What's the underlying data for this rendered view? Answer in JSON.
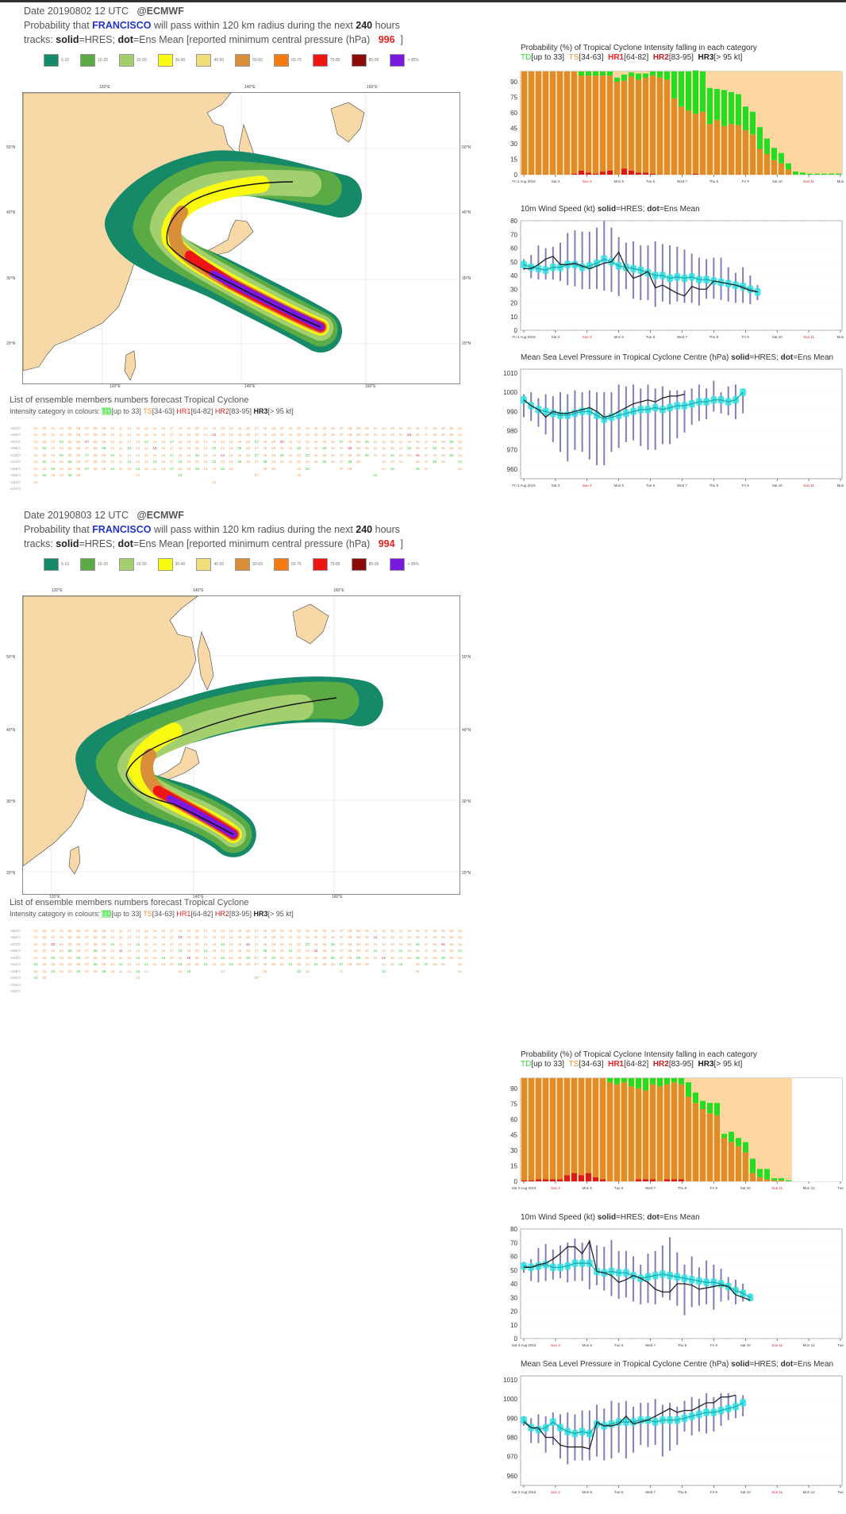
{
  "panels": [
    {
      "date_line": "Date 20190802 12 UTC",
      "org": "@ECMWF",
      "prob_prefix": "Probability that",
      "storm_name": "FRANCISCO",
      "prob_suffix": "will pass within 120 km radius during the next",
      "hours": "240",
      "hours_unit": "hours",
      "tracks_prefix": "tracks:",
      "solid": "solid",
      "solid_desc": "=HRES;",
      "dot": "dot",
      "dot_desc": "=Ens Mean [reported minimum central pressure (hPa)",
      "pressure": "996",
      "close_bracket": "]",
      "map_lon_top": [
        "120°E",
        "140°E",
        "160°E"
      ],
      "map_lat": [
        "50°N",
        "40°N",
        "30°N",
        "20°N"
      ],
      "map_lon_bottom": [
        "120°E",
        "140°E",
        "160°E"
      ],
      "ens_title": "List of ensemble members numbers forecast Tropical Cyclone",
      "ens_cat_prefix": "Intensity category in colours:",
      "ens_rows": [
        "+024 h",
        "+048 h",
        "+072 h",
        "+096 h",
        "+120 h",
        "+144 h",
        "+168 h",
        "+192 h",
        "+216 h",
        "+240 h"
      ],
      "ens_counts": [
        51,
        51,
        51,
        51,
        51,
        36,
        22,
        6,
        1,
        0
      ],
      "prob_chart": {
        "title": "Probability (%) of Tropical Cyclone Intensity falling in each category",
        "x_labels": [
          "Fri 2 Aug 2019",
          "Sat 3",
          "Sun 4",
          "Mon 5",
          "Tue 6",
          "Wed 7",
          "Thu 8",
          "Fri 9",
          "Sat 10",
          "Sun 11",
          "Mon"
        ],
        "td": [
          0,
          0,
          0,
          0,
          0,
          0,
          0,
          0,
          4,
          4,
          4,
          4,
          4,
          4,
          6,
          4,
          6,
          4,
          4,
          6,
          8,
          26,
          34,
          38,
          42,
          39,
          35,
          30,
          35,
          31,
          30,
          23,
          22,
          21,
          15,
          12,
          10,
          6,
          3,
          2,
          1,
          1,
          1,
          1,
          1
        ],
        "ts": [
          100,
          100,
          100,
          100,
          100,
          100,
          100,
          99,
          92,
          94,
          95,
          93,
          92,
          90,
          85,
          91,
          90,
          92,
          95,
          94,
          92,
          74,
          66,
          62,
          58,
          61,
          49,
          53,
          47,
          49,
          48,
          43,
          39,
          25,
          20,
          14,
          11,
          5,
          0,
          0,
          0,
          0,
          0,
          0,
          0
        ],
        "hr1": [
          0,
          0,
          0,
          0,
          0,
          0,
          0,
          1,
          4,
          2,
          1,
          3,
          4,
          0,
          6,
          4,
          2,
          2,
          1,
          0,
          0,
          0,
          0,
          0,
          1,
          0,
          0,
          0,
          0,
          0,
          0,
          0,
          0,
          0,
          0,
          0,
          0,
          0,
          0,
          0,
          0,
          0,
          0,
          0,
          0
        ]
      },
      "wind_chart": {
        "title": "10m Wind Speed (kt)",
        "y_ticks": [
          0,
          10,
          20,
          30,
          40,
          50,
          60,
          70,
          80
        ],
        "x_labels": [
          "Fri 2 Aug 2019",
          "Sat 3",
          "Sun 4",
          "Mon 5",
          "Tue 6",
          "Wed 7",
          "Thu 8",
          "Fri 9",
          "Sat 10",
          "Sun 11",
          "Mon"
        ],
        "hres": [
          45,
          45,
          48,
          52,
          54,
          48,
          48,
          49,
          47,
          45,
          47,
          49,
          50,
          57,
          45,
          38,
          40,
          43,
          31,
          33,
          30,
          27,
          25,
          32,
          30,
          30,
          36,
          35,
          34,
          33,
          31,
          29,
          28
        ],
        "ens_mean": [
          48,
          46,
          45,
          44,
          46,
          46,
          48,
          48,
          46,
          47,
          49,
          52,
          50,
          47,
          46,
          45,
          44,
          42,
          40,
          40,
          38,
          39,
          38,
          39,
          37,
          37,
          36,
          35,
          34,
          33,
          32,
          30,
          28
        ],
        "ens_min": [
          44,
          38,
          37,
          37,
          37,
          36,
          33,
          32,
          30,
          30,
          30,
          29,
          28,
          25,
          30,
          23,
          22,
          22,
          17,
          21,
          19,
          21,
          20,
          20,
          18,
          23,
          23,
          22,
          21,
          20,
          20,
          19,
          22
        ],
        "ens_max": [
          52,
          55,
          62,
          60,
          61,
          64,
          71,
          73,
          72,
          72,
          75,
          80,
          75,
          68,
          64,
          65,
          62,
          62,
          65,
          63,
          62,
          61,
          59,
          56,
          53,
          52,
          53,
          53,
          46,
          42,
          46,
          40,
          33
        ]
      },
      "mslp_chart": {
        "title": "Mean Sea Level Pressure in Tropical Cyclone Centre (hPa)",
        "y_ticks": [
          960,
          970,
          980,
          990,
          1000,
          1010
        ],
        "x_labels": [
          "Fri 2 Aug 2019",
          "Sat 3",
          "Sun 4",
          "Mon 5",
          "Tue 6",
          "Wed 7",
          "Thu 8",
          "Fri 9",
          "Sat 10",
          "Sun 11",
          "Mon"
        ],
        "hres": [
          996,
          993,
          991,
          987,
          990,
          989,
          989,
          990,
          991,
          992,
          990,
          987,
          988,
          990,
          992,
          994,
          995,
          996,
          995,
          997,
          998,
          998,
          999
        ],
        "ens_mean": [
          996,
          993,
          991,
          990,
          989,
          988,
          988,
          989,
          990,
          990,
          988,
          986,
          987,
          988,
          989,
          990,
          991,
          991,
          992,
          991,
          992,
          993,
          993,
          994,
          995,
          995,
          996,
          996,
          995,
          996,
          1000
        ],
        "ens_min": [
          987,
          985,
          982,
          978,
          974,
          969,
          964,
          970,
          969,
          965,
          962,
          962,
          969,
          971,
          974,
          975,
          972,
          970,
          970,
          973,
          973,
          976,
          979,
          983,
          985,
          986,
          990,
          989,
          988,
          986,
          989
        ],
        "ens_max": [
          999,
          1000,
          997,
          999,
          998,
          1000,
          999,
          1001,
          1000,
          1001,
          1000,
          1000,
          1000,
          1004,
          1003,
          1004,
          1002,
          1004,
          1002,
          1003,
          1001,
          1001,
          1001,
          1002,
          1004,
          1002,
          1006,
          1000,
          1003,
          1004,
          1000
        ]
      }
    },
    {
      "date_line": "Date 20190803 12 UTC",
      "org": "@ECMWF",
      "prob_prefix": "Probability that",
      "storm_name": "FRANCISCO",
      "prob_suffix": "will pass within 120 km radius during the next",
      "hours": "240",
      "hours_unit": "hours",
      "tracks_prefix": "tracks:",
      "solid": "solid",
      "solid_desc": "=HRES;",
      "dot": "dot",
      "dot_desc": "=Ens Mean [reported minimum central pressure (hPa)",
      "pressure": "994",
      "close_bracket": "]",
      "map_lon_top": [
        "120°E",
        "140°E",
        "160°E"
      ],
      "map_lat": [
        "50°N",
        "40°N",
        "30°N",
        "20°N"
      ],
      "map_lon_bottom": [
        "120°E",
        "140°E",
        "160°E"
      ],
      "ens_title": "List of ensemble members numbers forecast Tropical Cyclone",
      "ens_cat_prefix": "Intensity category in colours:",
      "ens_rows": [
        "+024 h",
        "+048 h",
        "+072 h",
        "+096 h",
        "+120 h",
        "+144 h",
        "+168 h",
        "+192 h",
        "+216 h",
        "+240 h"
      ],
      "ens_counts": [
        51,
        51,
        51,
        51,
        51,
        38,
        14,
        2,
        0,
        0
      ],
      "prob_chart": {
        "title": "Probability (%) of Tropical Cyclone Intensity falling in each category",
        "x_labels": [
          "Sat 3 Aug 2019",
          "Sun 4",
          "Mon 5",
          "Tue 6",
          "Wed 7",
          "Thu 8",
          "Fri 9",
          "Sat 10",
          "Sun 11",
          "Mon 12",
          "Tue"
        ],
        "td": [
          0,
          0,
          0,
          0,
          0,
          0,
          0,
          0,
          0,
          0,
          0,
          0,
          4,
          6,
          4,
          8,
          10,
          12,
          6,
          8,
          6,
          4,
          6,
          14,
          10,
          8,
          10,
          12,
          4,
          10,
          8,
          10,
          14,
          8,
          10,
          2,
          2,
          1,
          0,
          0,
          0,
          0,
          0,
          0,
          0
        ],
        "ts": [
          99,
          99,
          98,
          98,
          98,
          98,
          94,
          92,
          94,
          92,
          96,
          98,
          96,
          94,
          96,
          92,
          88,
          86,
          92,
          92,
          92,
          94,
          92,
          82,
          76,
          70,
          66,
          64,
          42,
          38,
          34,
          28,
          8,
          4,
          2,
          1,
          1,
          0,
          0,
          0,
          0,
          0,
          0,
          0,
          0
        ],
        "hr1": [
          1,
          1,
          2,
          2,
          2,
          2,
          6,
          8,
          6,
          8,
          4,
          2,
          0,
          0,
          0,
          0,
          2,
          2,
          2,
          0,
          2,
          2,
          2,
          0,
          0,
          0,
          0,
          0,
          0,
          0,
          0,
          0,
          0,
          0,
          0,
          0,
          0,
          0,
          0,
          0,
          0,
          0,
          0,
          0,
          0
        ]
      },
      "wind_chart": {
        "title": "10m Wind Speed (kt)",
        "y_ticks": [
          0,
          10,
          20,
          30,
          40,
          50,
          60,
          70,
          80
        ],
        "x_labels": [
          "Sat 3 Aug 2019",
          "Sun 4",
          "Mon 5",
          "Tue 6",
          "Wed 7",
          "Thu 8",
          "Fri 9",
          "Sat 10",
          "Sun 11",
          "Mon 12",
          "Tue"
        ],
        "hres": [
          52,
          52,
          54,
          55,
          58,
          62,
          67,
          67,
          62,
          71,
          49,
          48,
          46,
          41,
          43,
          46,
          44,
          41,
          36,
          34,
          34,
          40,
          40,
          39,
          36,
          37,
          38,
          39,
          38,
          32,
          30,
          28
        ],
        "ens_mean": [
          53,
          52,
          53,
          54,
          52,
          52,
          53,
          55,
          55,
          55,
          49,
          48,
          49,
          48,
          48,
          46,
          44,
          45,
          46,
          47,
          46,
          45,
          44,
          43,
          42,
          41,
          41,
          40,
          38,
          35,
          33,
          30
        ],
        "ens_min": [
          48,
          42,
          41,
          42,
          43,
          44,
          41,
          42,
          42,
          36,
          39,
          35,
          31,
          29,
          30,
          27,
          25,
          26,
          25,
          30,
          28,
          24,
          17,
          23,
          24,
          25,
          21,
          27,
          28,
          25,
          27,
          29
        ],
        "ens_max": [
          56,
          58,
          66,
          69,
          65,
          68,
          70,
          73,
          70,
          72,
          68,
          67,
          72,
          64,
          64,
          60,
          54,
          62,
          64,
          68,
          74,
          63,
          54,
          60,
          52,
          57,
          54,
          51,
          45,
          43,
          40,
          32
        ]
      },
      "mslp_chart": {
        "title": "Mean Sea Level Pressure in Tropical Cyclone Centre (hPa)",
        "y_ticks": [
          960,
          970,
          980,
          990,
          1000,
          1010
        ],
        "x_labels": [
          "Sat 3 Aug 2019",
          "Sun 4",
          "Mon 5",
          "Tue 6",
          "Wed 7",
          "Thu 8",
          "Fri 9",
          "Sat 10",
          "Sun 11",
          "Mon 12",
          "Tue"
        ],
        "hres": [
          988,
          985,
          985,
          980,
          980,
          976,
          975,
          975,
          975,
          974,
          988,
          986,
          986,
          987,
          991,
          987,
          988,
          989,
          991,
          993,
          995,
          993,
          994,
          994,
          996,
          998,
          998,
          1001,
          1001,
          1002
        ],
        "ens_mean": [
          989,
          985,
          984,
          985,
          988,
          985,
          983,
          982,
          983,
          982,
          987,
          986,
          987,
          988,
          988,
          988,
          989,
          989,
          988,
          989,
          989,
          989,
          990,
          991,
          992,
          993,
          993,
          994,
          995,
          996,
          998
        ],
        "ens_min": [
          986,
          977,
          977,
          972,
          976,
          969,
          966,
          968,
          968,
          968,
          970,
          968,
          969,
          972,
          969,
          972,
          976,
          975,
          976,
          970,
          973,
          976,
          983,
          981,
          983,
          982,
          983,
          986,
          989,
          990,
          991
        ],
        "ens_max": [
          991,
          990,
          992,
          991,
          993,
          992,
          993,
          992,
          994,
          994,
          997,
          995,
          999,
          998,
          999,
          996,
          998,
          998,
          1000,
          997,
          998,
          996,
          999,
          1001,
          1000,
          1003,
          1001,
          1003,
          1003,
          1002,
          1002
        ]
      }
    }
  ],
  "common": {
    "map_legend": [
      {
        "label": "5-10",
        "color": "#168a68"
      },
      {
        "label": "10-20",
        "color": "#5aab45"
      },
      {
        "label": "20-30",
        "color": "#a4cf6e"
      },
      {
        "label": "30-40",
        "color": "#fafa10"
      },
      {
        "label": "40-50",
        "color": "#f0dc78"
      },
      {
        "label": "50-60",
        "color": "#d98e3a"
      },
      {
        "label": "60-75",
        "color": "#f57b10"
      },
      {
        "label": "75-85",
        "color": "#ee1515"
      },
      {
        "label": "85-95",
        "color": "#8b0a0a"
      },
      {
        "label": "> 95%",
        "color": "#7a1ae0"
      }
    ],
    "categories": [
      {
        "code": "TD",
        "range": "[up to 33]",
        "color": "#33dd33"
      },
      {
        "code": "TS",
        "range": "[34-63]",
        "color": "#f08a30"
      },
      {
        "code": "HR1",
        "range": "[64-82]",
        "color": "#ee2020"
      },
      {
        "code": "HR2",
        "range": "[83-95]",
        "color": "#c02020"
      },
      {
        "code": "HR3",
        "range": "[> 95 kt]",
        "color": "#222222"
      }
    ],
    "chart_solid_label": "solid",
    "chart_solid_desc": "=HRES;",
    "chart_dot_label": "dot",
    "chart_dot_desc": "=Ens Mean",
    "prob_y_ticks": [
      0,
      15,
      30,
      45,
      60,
      75,
      90
    ],
    "colors": {
      "land": "#f9d8a8",
      "ts_bar": "#e08a28",
      "ts_gap": "#fcd8a0",
      "td_bar": "#22dd22",
      "hr1_bar": "#dd1818",
      "ens_box": "#2ee0e0",
      "whisker": "#8080b8",
      "hres_line": "#222222"
    }
  },
  "chart_data": [
    {
      "type": "bar",
      "title": "Probability (%) of Tropical Cyclone Intensity falling in each category (20190802 12 UTC)",
      "ylabel": "%",
      "ylim": [
        0,
        100
      ],
      "series_ref": "panels.0.prob_chart"
    },
    {
      "type": "line",
      "title": "10m Wind Speed (kt) solid=HRES; dot=Ens Mean (20190802 12 UTC)",
      "ylim": [
        0,
        80
      ],
      "series_ref": "panels.0.wind_chart"
    },
    {
      "type": "line",
      "title": "Mean Sea Level Pressure in Tropical Cyclone Centre (hPa) (20190802 12 UTC)",
      "ylim": [
        955,
        1012
      ],
      "series_ref": "panels.0.mslp_chart"
    },
    {
      "type": "bar",
      "title": "Probability (%) of Tropical Cyclone Intensity falling in each category (20190803 12 UTC)",
      "ylim": [
        0,
        100
      ],
      "series_ref": "panels.1.prob_chart"
    },
    {
      "type": "line",
      "title": "10m Wind Speed (kt) solid=HRES; dot=Ens Mean (20190803 12 UTC)",
      "ylim": [
        0,
        80
      ],
      "series_ref": "panels.1.wind_chart"
    },
    {
      "type": "line",
      "title": "Mean Sea Level Pressure in Tropical Cyclone Centre (hPa) (20190803 12 UTC)",
      "ylim": [
        960,
        1010
      ],
      "series_ref": "panels.1.mslp_chart"
    }
  ]
}
